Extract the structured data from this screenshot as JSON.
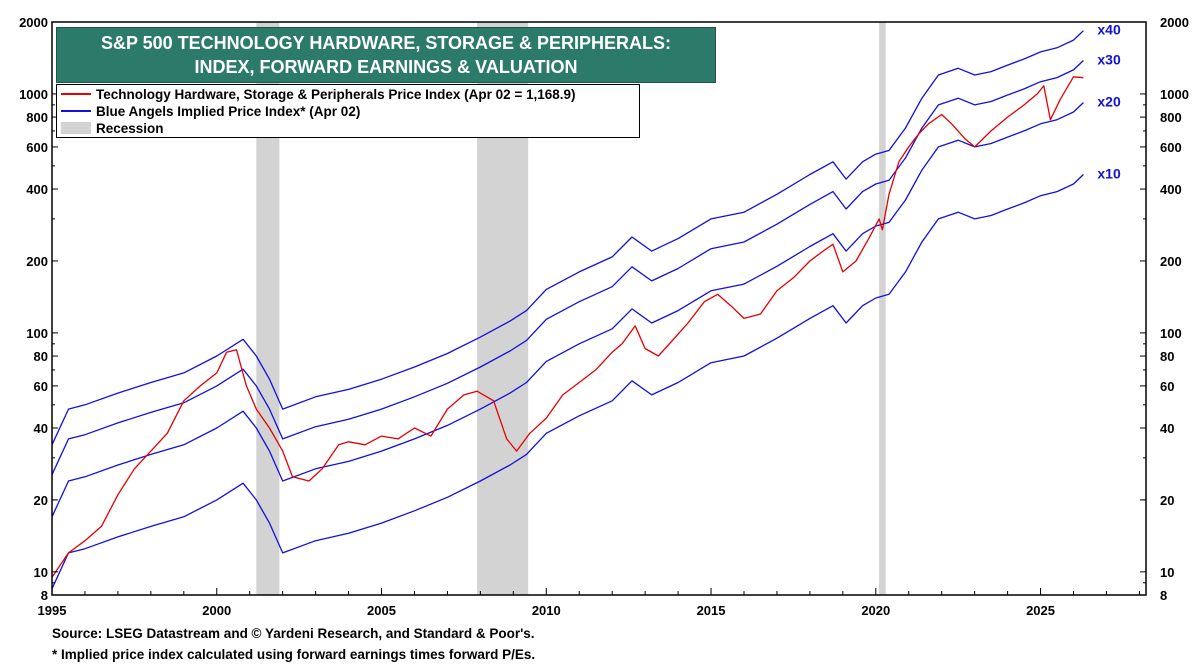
{
  "title_lines": [
    "S&P 500 TECHNOLOGY HARDWARE, STORAGE & PERIPHERALS:",
    "INDEX, FORWARD EARNINGS & VALUATION"
  ],
  "legend": [
    {
      "label": "Technology Hardware, Storage & Peripherals Price Index (Apr 02 = 1,168.9)",
      "color": "#e60000",
      "kind": "line"
    },
    {
      "label": "Blue Angels Implied Price Index* (Apr 02)",
      "color": "#1010e0",
      "kind": "line"
    },
    {
      "label": "Recession",
      "color": "#d3d3d3",
      "kind": "rect"
    }
  ],
  "footnotes": [
    "Source: LSEG Datastream and © Yardeni Research, and Standard & Poor's.",
    "* Implied price index calculated using forward earnings times forward P/Es."
  ],
  "colors": {
    "price": "#e60000",
    "implied": "#1010e0",
    "recession": "#d3d3d3"
  },
  "chart_data": {
    "type": "line",
    "y_scale": "log",
    "xlim": [
      1995,
      2028.2
    ],
    "ylim": [
      8,
      2000
    ],
    "x_ticks": [
      "1995",
      "2000",
      "2005",
      "2010",
      "2015",
      "2020",
      "2025"
    ],
    "y_ticks": [
      8,
      10,
      20,
      40,
      60,
      80,
      100,
      200,
      400,
      600,
      800,
      1000,
      2000
    ],
    "y_tick_labels": [
      "8",
      "10",
      "20",
      "40",
      "60",
      "80",
      "100",
      "200",
      "400",
      "600",
      "800",
      "1000",
      "2000"
    ],
    "recessions": [
      [
        2001.2,
        2001.9
      ],
      [
        2007.9,
        2009.45
      ],
      [
        2020.1,
        2020.3
      ]
    ],
    "series": [
      {
        "name": "Technology Hardware, Storage & Peripherals Price Index",
        "color": "#e60000",
        "x": [
          1995,
          1995.5,
          1996,
          1996.5,
          1997,
          1997.5,
          1998,
          1998.5,
          1999,
          1999.5,
          2000,
          2000.3,
          2000.6,
          2000.9,
          2001.2,
          2001.6,
          2002,
          2002.3,
          2002.8,
          2003.2,
          2003.7,
          2004,
          2004.5,
          2005,
          2005.5,
          2006,
          2006.5,
          2007,
          2007.5,
          2007.9,
          2008.4,
          2008.8,
          2009.1,
          2009.5,
          2010,
          2010.5,
          2011,
          2011.5,
          2012,
          2012.3,
          2012.7,
          2013,
          2013.4,
          2013.8,
          2014.3,
          2014.8,
          2015.2,
          2015.6,
          2016,
          2016.5,
          2017,
          2017.5,
          2018,
          2018.4,
          2018.7,
          2019,
          2019.4,
          2019.8,
          2020.1,
          2020.2,
          2020.4,
          2020.7,
          2021,
          2021.3,
          2021.6,
          2022,
          2022.3,
          2022.7,
          2023,
          2023.5,
          2024,
          2024.5,
          2024.9,
          2025.1,
          2025.3,
          2025.6,
          2026,
          2026.3
        ],
        "y": [
          9.5,
          12,
          13.5,
          15.5,
          21,
          27,
          32,
          38,
          52,
          60,
          68,
          83,
          85,
          60,
          48,
          40,
          32,
          25,
          24,
          27,
          34,
          35,
          34,
          37,
          36,
          40,
          37,
          48,
          55,
          57,
          52,
          36,
          32,
          38,
          44,
          55,
          62,
          70,
          83,
          90,
          107,
          86,
          80,
          92,
          110,
          135,
          145,
          130,
          115,
          120,
          150,
          170,
          200,
          220,
          235,
          180,
          200,
          250,
          300,
          270,
          380,
          520,
          600,
          680,
          750,
          820,
          750,
          650,
          600,
          700,
          800,
          900,
          1000,
          1080,
          780,
          950,
          1180,
          1169
        ]
      },
      {
        "name": "x10",
        "color": "#1010e0",
        "x": [
          1995,
          1995.5,
          1996,
          1997,
          1998,
          1999,
          2000,
          2000.8,
          2001.2,
          2001.6,
          2002,
          2003,
          2004,
          2005,
          2006,
          2007,
          2008,
          2008.9,
          2009.4,
          2010,
          2011,
          2012,
          2012.6,
          2013.2,
          2014,
          2015,
          2016,
          2017,
          2018,
          2018.7,
          2019.1,
          2019.6,
          2020,
          2020.4,
          2020.9,
          2021.4,
          2021.9,
          2022.5,
          2023,
          2023.5,
          2024,
          2024.5,
          2025,
          2025.5,
          2026,
          2026.3
        ],
        "y": [
          8.5,
          12,
          12.5,
          14,
          15.5,
          17,
          20,
          23.5,
          20,
          16,
          12,
          13.5,
          14.5,
          16,
          18,
          20.5,
          24,
          28,
          31,
          38,
          45,
          52,
          63,
          55,
          62,
          75,
          80,
          95,
          115,
          130,
          110,
          130,
          140,
          145,
          180,
          240,
          300,
          320,
          300,
          310,
          330,
          350,
          375,
          390,
          420,
          460
        ]
      },
      {
        "name": "x20",
        "color": "#1010e0",
        "x": [
          1995,
          1995.5,
          1996,
          1997,
          1998,
          1999,
          2000,
          2000.8,
          2001.2,
          2001.6,
          2002,
          2003,
          2004,
          2005,
          2006,
          2007,
          2008,
          2008.9,
          2009.4,
          2010,
          2011,
          2012,
          2012.6,
          2013.2,
          2014,
          2015,
          2016,
          2017,
          2018,
          2018.7,
          2019.1,
          2019.6,
          2020,
          2020.4,
          2020.9,
          2021.4,
          2021.9,
          2022.5,
          2023,
          2023.5,
          2024,
          2024.5,
          2025,
          2025.5,
          2026,
          2026.3
        ],
        "y": [
          17,
          24,
          25,
          28,
          31,
          34,
          40,
          47,
          40,
          32,
          24,
          27,
          29,
          32,
          36,
          41,
          48,
          56,
          62,
          76,
          90,
          104,
          126,
          110,
          124,
          150,
          160,
          190,
          230,
          260,
          220,
          260,
          280,
          290,
          360,
          480,
          600,
          640,
          600,
          620,
          660,
          700,
          750,
          780,
          840,
          920
        ]
      },
      {
        "name": "x30",
        "color": "#1010e0",
        "x": [
          1995,
          1995.5,
          1996,
          1997,
          1998,
          1999,
          2000,
          2000.8,
          2001.2,
          2001.6,
          2002,
          2003,
          2004,
          2005,
          2006,
          2007,
          2008,
          2008.9,
          2009.4,
          2010,
          2011,
          2012,
          2012.6,
          2013.2,
          2014,
          2015,
          2016,
          2017,
          2018,
          2018.7,
          2019.1,
          2019.6,
          2020,
          2020.4,
          2020.9,
          2021.4,
          2021.9,
          2022.5,
          2023,
          2023.5,
          2024,
          2024.5,
          2025,
          2025.5,
          2026,
          2026.3
        ],
        "y": [
          25.5,
          36,
          37.5,
          42,
          46.5,
          51,
          60,
          70.5,
          60,
          48,
          36,
          40.5,
          43.5,
          48,
          54,
          61.5,
          72,
          84,
          93,
          114,
          135,
          156,
          189,
          165,
          186,
          225,
          240,
          285,
          345,
          390,
          330,
          390,
          420,
          435,
          540,
          720,
          900,
          960,
          900,
          930,
          990,
          1050,
          1125,
          1170,
          1260,
          1380
        ]
      },
      {
        "name": "x40",
        "color": "#1010e0",
        "x": [
          1995,
          1995.5,
          1996,
          1997,
          1998,
          1999,
          2000,
          2000.8,
          2001.2,
          2001.6,
          2002,
          2003,
          2004,
          2005,
          2006,
          2007,
          2008,
          2008.9,
          2009.4,
          2010,
          2011,
          2012,
          2012.6,
          2013.2,
          2014,
          2015,
          2016,
          2017,
          2018,
          2018.7,
          2019.1,
          2019.6,
          2020,
          2020.4,
          2020.9,
          2021.4,
          2021.9,
          2022.5,
          2023,
          2023.5,
          2024,
          2024.5,
          2025,
          2025.5,
          2026,
          2026.3
        ],
        "y": [
          34,
          48,
          50,
          56,
          62,
          68,
          80,
          94,
          80,
          64,
          48,
          54,
          58,
          64,
          72,
          82,
          96,
          112,
          124,
          152,
          180,
          208,
          252,
          220,
          248,
          300,
          320,
          380,
          460,
          520,
          440,
          520,
          560,
          580,
          720,
          960,
          1200,
          1280,
          1200,
          1240,
          1320,
          1400,
          1500,
          1560,
          1680,
          1840
        ]
      }
    ],
    "band_labels": [
      {
        "text": "x40",
        "x": 2026.3,
        "y": 1840
      },
      {
        "text": "x30",
        "x": 2026.3,
        "y": 1380
      },
      {
        "text": "x20",
        "x": 2026.3,
        "y": 920
      },
      {
        "text": "x10",
        "x": 2026.3,
        "y": 460
      }
    ],
    "grid": false,
    "legend_position": "top-left"
  }
}
